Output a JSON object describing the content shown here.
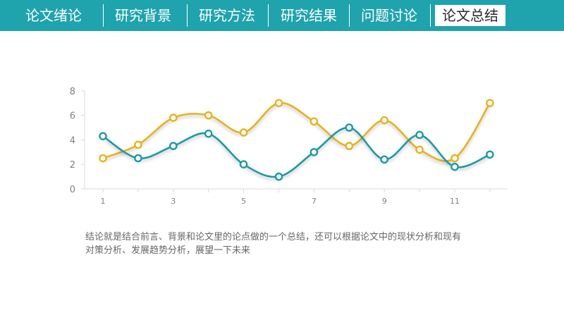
{
  "nav": {
    "items": [
      {
        "label": "论文绪论",
        "active": false
      },
      {
        "label": "研究背景",
        "active": false
      },
      {
        "label": "研究方法",
        "active": false
      },
      {
        "label": "研究结果",
        "active": false
      },
      {
        "label": "问题讨论",
        "active": false
      },
      {
        "label": "论文总结",
        "active": true
      }
    ]
  },
  "description": {
    "line1": "结论就是结合前言、背景和论文里的论点做的一个总结，还可以根据论文中的现状分析和现有",
    "line2": "对策分析、发展趋势分析，展望一下未来"
  },
  "colors": {
    "header": "#1fa3ad",
    "series_teal": "#1c9aa4",
    "series_gold": "#e6b31e",
    "axis": "#d9d9d9",
    "tick_text": "#808080"
  },
  "chart_data": {
    "type": "line",
    "smooth": true,
    "x": [
      1,
      2,
      3,
      4,
      5,
      6,
      7,
      8,
      9,
      10,
      11,
      12
    ],
    "x_tick_labels": [
      "1",
      "3",
      "5",
      "7",
      "9",
      "11"
    ],
    "x_tick_values": [
      1,
      3,
      5,
      7,
      9,
      11
    ],
    "y_tick_labels": [
      "0",
      "2",
      "4",
      "6",
      "8"
    ],
    "y_tick_values": [
      0,
      2,
      4,
      6,
      8
    ],
    "ylim": [
      0,
      8
    ],
    "grid": false,
    "legend": "none",
    "title": "",
    "xlabel": "",
    "ylabel": "",
    "series": [
      {
        "color": "#1c9aa4",
        "values": [
          4.3,
          2.5,
          3.5,
          4.5,
          2.0,
          1.0,
          3.0,
          5.0,
          2.4,
          4.4,
          1.8,
          2.8
        ]
      },
      {
        "color": "#e6b31e",
        "values": [
          2.5,
          3.6,
          5.8,
          6.0,
          4.6,
          7.0,
          5.5,
          3.5,
          5.6,
          3.2,
          2.5,
          7.0
        ]
      }
    ]
  }
}
